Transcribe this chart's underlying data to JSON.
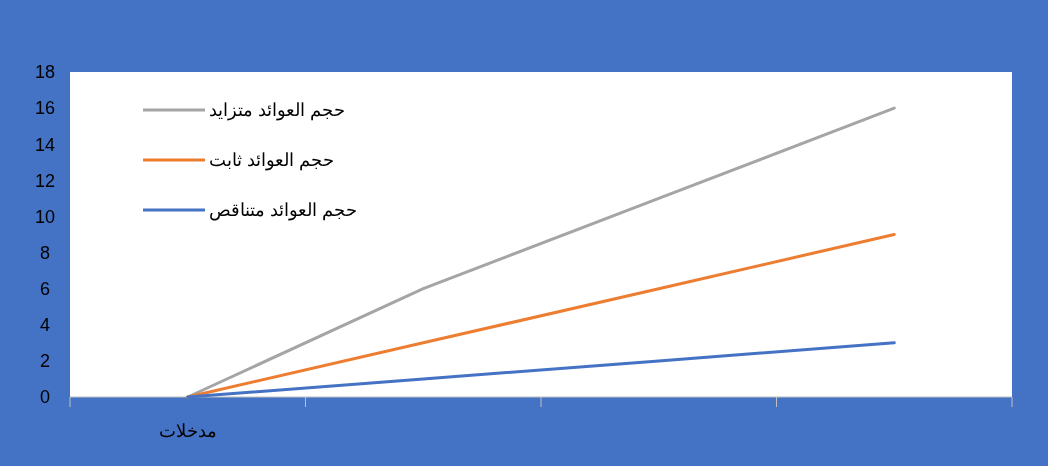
{
  "chart_data": {
    "type": "line",
    "categories": [
      "مدخلات",
      null,
      null,
      null
    ],
    "series": [
      {
        "name": "حجم العوائد متزايد",
        "color": "#a5a5a5",
        "values": [
          0,
          6,
          11,
          16
        ]
      },
      {
        "name": "حجم العوائد ثابت",
        "color": "#ed7d31",
        "values": [
          0,
          3,
          6,
          9
        ]
      },
      {
        "name": "حجم العوائد متناقص",
        "color": "#4472c4",
        "values": [
          0,
          1,
          2,
          3
        ]
      }
    ],
    "ylim": [
      0,
      18
    ],
    "yticks": [
      0,
      2,
      4,
      6,
      8,
      10,
      12,
      14,
      16,
      18
    ],
    "legend": "top left"
  }
}
